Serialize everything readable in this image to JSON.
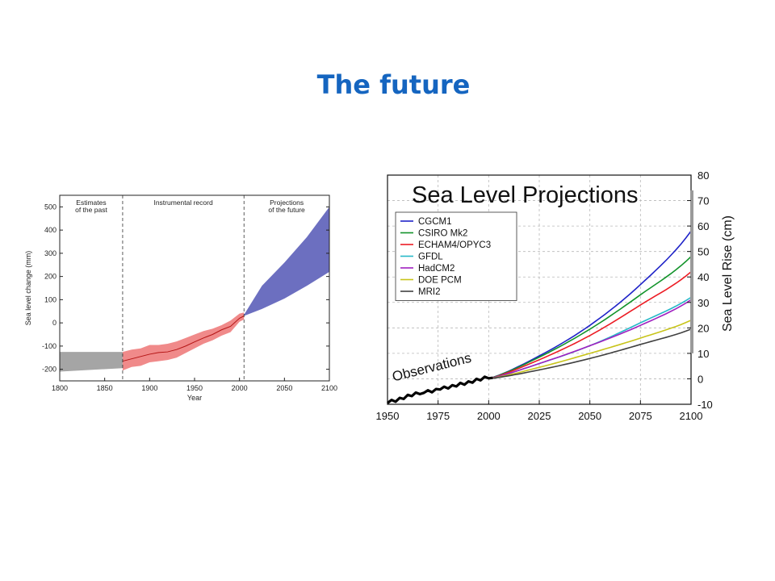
{
  "slide": {
    "title": "The future"
  },
  "chart_data": [
    {
      "type": "area",
      "title": "",
      "xlabel": "Year",
      "ylabel": "Sea level change (mm)",
      "xlim": [
        1800,
        2100
      ],
      "ylim": [
        -250,
        550
      ],
      "xticks": [
        1800,
        1850,
        1900,
        1950,
        2000,
        2050,
        2100
      ],
      "yticks": [
        -200,
        -100,
        0,
        100,
        200,
        300,
        400,
        500
      ],
      "dividers": [
        1870,
        2005
      ],
      "periods": [
        {
          "label": "Estimates\nof the past",
          "range": [
            1800,
            1870
          ]
        },
        {
          "label": "Instrumental record",
          "range": [
            1870,
            2005
          ]
        },
        {
          "label": "Projections\nof the future",
          "range": [
            2005,
            2100
          ]
        }
      ],
      "colors": {
        "past": "#a5a5a5",
        "instrumental_band": "#f08a8a",
        "instrumental_line": "#b41414",
        "projection": "#6c6fc0"
      },
      "series": [
        {
          "band": "past",
          "x": [
            1800,
            1870
          ],
          "lower": [
            -210,
            -195
          ],
          "upper": [
            -125,
            -125
          ]
        },
        {
          "band": "instrumental",
          "x": [
            1870,
            1880,
            1890,
            1900,
            1910,
            1920,
            1930,
            1940,
            1950,
            1960,
            1970,
            1980,
            1990,
            2000,
            2005
          ],
          "lower": [
            -205,
            -190,
            -185,
            -170,
            -165,
            -160,
            -150,
            -130,
            -110,
            -90,
            -75,
            -55,
            -40,
            5,
            15
          ],
          "upper": [
            -125,
            -115,
            -110,
            -95,
            -95,
            -90,
            -80,
            -65,
            -50,
            -35,
            -25,
            -10,
            10,
            40,
            45
          ],
          "center": [
            -165,
            -155,
            -145,
            -135,
            -128,
            -125,
            -115,
            -100,
            -82,
            -65,
            -50,
            -30,
            -15,
            20,
            30
          ]
        },
        {
          "band": "projection",
          "x": [
            2005,
            2025,
            2050,
            2075,
            2100
          ],
          "lower": [
            30,
            60,
            105,
            160,
            220
          ],
          "upper": [
            35,
            160,
            260,
            370,
            500
          ]
        }
      ]
    },
    {
      "type": "line",
      "title": "Sea Level Projections",
      "xlabel": "",
      "ylabel": "Sea Level Rise (cm)",
      "xlim": [
        1950,
        2100
      ],
      "ylim": [
        -10,
        80
      ],
      "xticks": [
        1950,
        1975,
        2000,
        2025,
        2050,
        2075,
        2100
      ],
      "yticks": [
        -10,
        0,
        10,
        20,
        30,
        40,
        50,
        60,
        70,
        80
      ],
      "grid": true,
      "legend": "top-left",
      "range_bar": [
        10,
        74
      ],
      "annotation": "Observations",
      "observations": {
        "x": [
          1950,
          1952,
          1954,
          1956,
          1958,
          1960,
          1962,
          1964,
          1966,
          1968,
          1970,
          1972,
          1974,
          1976,
          1978,
          1980,
          1982,
          1984,
          1986,
          1988,
          1990,
          1992,
          1994,
          1996,
          1998,
          2000,
          2002
        ],
        "y": [
          -9.5,
          -8.3,
          -9,
          -7.5,
          -7.9,
          -6.3,
          -6.8,
          -5.4,
          -6,
          -5.5,
          -4.5,
          -5.3,
          -4,
          -4.2,
          -3.1,
          -3.8,
          -2.5,
          -3,
          -1.6,
          -2.3,
          -1,
          -1.5,
          0,
          -0.6,
          0.8,
          0.2,
          0.4
        ]
      },
      "x": [
        2000,
        2025,
        2050,
        2075,
        2100
      ],
      "series": [
        {
          "name": "CGCM1",
          "color": "#1f23c8",
          "values": [
            0,
            9,
            21,
            37,
            58
          ]
        },
        {
          "name": "CSIRO Mk2",
          "color": "#12932a",
          "values": [
            0,
            8.5,
            19.5,
            33,
            48
          ]
        },
        {
          "name": "ECHAM4/OPYC3",
          "color": "#ec1c24",
          "values": [
            0,
            7.5,
            17,
            29,
            42
          ]
        },
        {
          "name": "GFDL",
          "color": "#26b8c8",
          "values": [
            0,
            6,
            13,
            22,
            32
          ]
        },
        {
          "name": "HadCM2",
          "color": "#a020c0",
          "values": [
            0,
            6,
            13,
            21,
            31
          ]
        },
        {
          "name": "DOE PCM",
          "color": "#c8c41a",
          "values": [
            0,
            4.5,
            10,
            16,
            23
          ]
        },
        {
          "name": "MRI2",
          "color": "#404040",
          "values": [
            0,
            3.5,
            8,
            13.5,
            19.5
          ]
        }
      ]
    }
  ]
}
